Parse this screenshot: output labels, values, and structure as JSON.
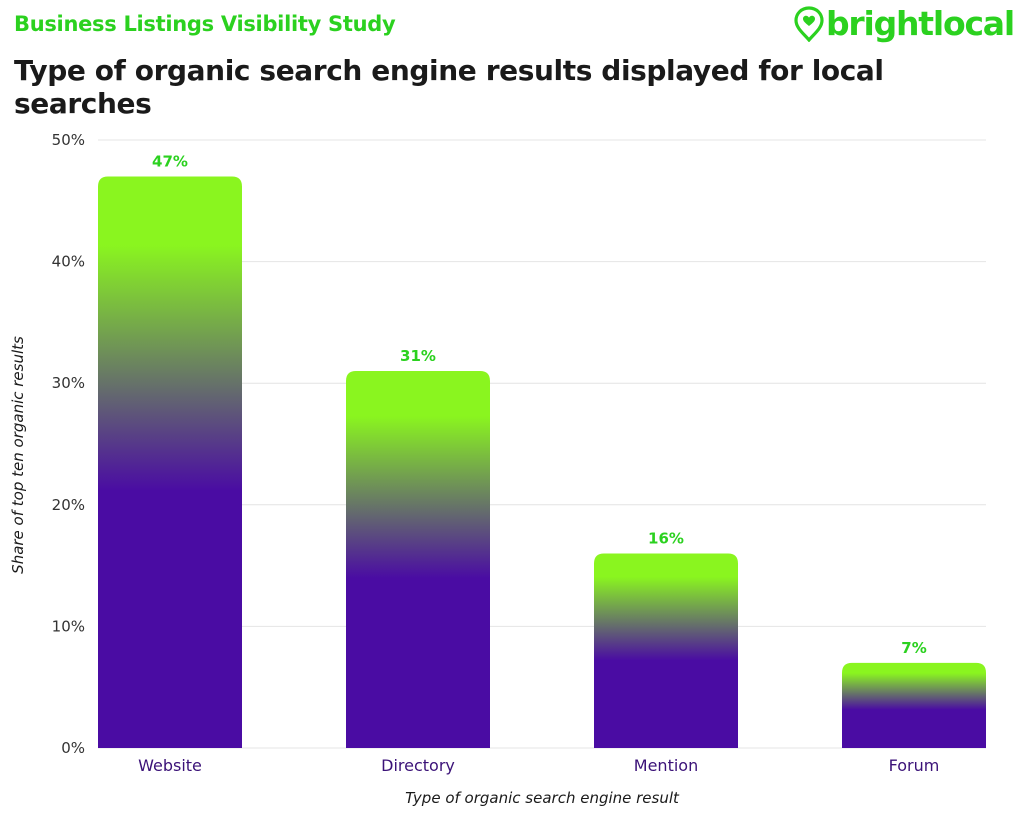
{
  "header": {
    "kicker": "Business Listings Visibility Study",
    "title": "Type of organic search engine results displayed for local searches",
    "logo_text": "brightlocal"
  },
  "colors": {
    "brand_green": "#2bd11f",
    "bar_top": "#8af51f",
    "bar_bottom": "#4a0ca3",
    "category_text": "#3b1278"
  },
  "chart_data": {
    "type": "bar",
    "categories": [
      "Website",
      "Directory",
      "Mention",
      "Forum"
    ],
    "values": [
      47,
      31,
      16,
      7
    ],
    "value_labels": [
      "47%",
      "31%",
      "16%",
      "7%"
    ],
    "xlabel": "Type of organic search engine result",
    "ylabel": "Share of top ten organic results",
    "ylim": [
      0,
      50
    ],
    "yticks": [
      0,
      10,
      20,
      30,
      40,
      50
    ],
    "ytick_labels": [
      "0%",
      "10%",
      "20%",
      "30%",
      "40%",
      "50%"
    ],
    "grid": true
  }
}
